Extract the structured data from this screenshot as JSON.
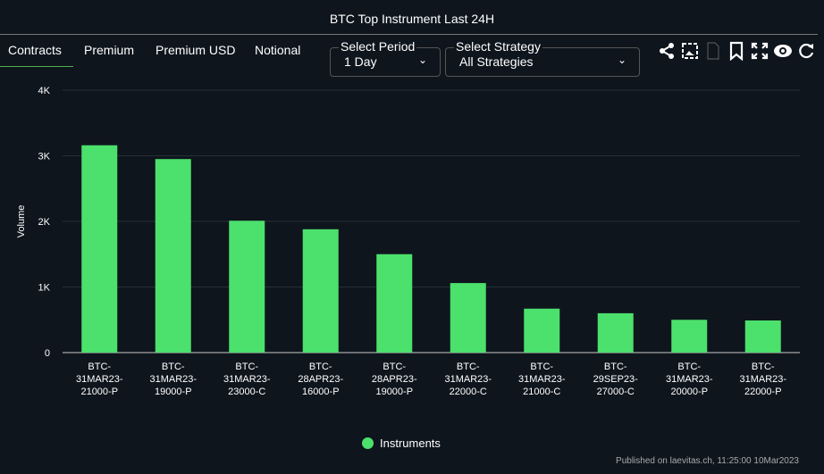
{
  "header": {
    "title": "BTC Top Instrument Last 24H"
  },
  "tabs": [
    {
      "label": "Contracts",
      "active": true
    },
    {
      "label": "Premium"
    },
    {
      "label": "Premium USD"
    },
    {
      "label": "Notional"
    }
  ],
  "period": {
    "label": "Select Period",
    "value": "1 Day"
  },
  "strategy": {
    "label": "Select Strategy",
    "value": "All Strategies"
  },
  "toolbar_icons": [
    "share-icon",
    "image-download-icon",
    "csv-icon",
    "bookmark-icon",
    "fullscreen-icon",
    "eye-icon",
    "refresh-icon"
  ],
  "colors": {
    "bar": "#4ce06c",
    "accent": "#4caf50",
    "background": "#0e151d"
  },
  "chart_data": {
    "type": "bar",
    "title": "BTC Top Instrument Last 24H",
    "ylabel": "Volume",
    "ylim": [
      0,
      4000
    ],
    "yticks": [
      "0",
      "1K",
      "2K",
      "3K",
      "4K"
    ],
    "grid": true,
    "legend": "bottom",
    "categories": [
      [
        "BTC-",
        "31MAR23-",
        "21000-P"
      ],
      [
        "BTC-",
        "31MAR23-",
        "19000-P"
      ],
      [
        "BTC-",
        "31MAR23-",
        "23000-C"
      ],
      [
        "BTC-",
        "28APR23-",
        "16000-P"
      ],
      [
        "BTC-",
        "28APR23-",
        "19000-P"
      ],
      [
        "BTC-",
        "31MAR23-",
        "22000-C"
      ],
      [
        "BTC-",
        "31MAR23-",
        "21000-C"
      ],
      [
        "BTC-",
        "29SEP23-",
        "27000-C"
      ],
      [
        "BTC-",
        "31MAR23-",
        "20000-P"
      ],
      [
        "BTC-",
        "31MAR23-",
        "22000-P"
      ]
    ],
    "series": [
      {
        "name": "Instruments",
        "values": [
          3160,
          2950,
          2010,
          1880,
          1500,
          1060,
          670,
          600,
          500,
          490
        ]
      }
    ]
  },
  "footer": "Published on laevitas.ch, 11:25:00 10Mar2023"
}
